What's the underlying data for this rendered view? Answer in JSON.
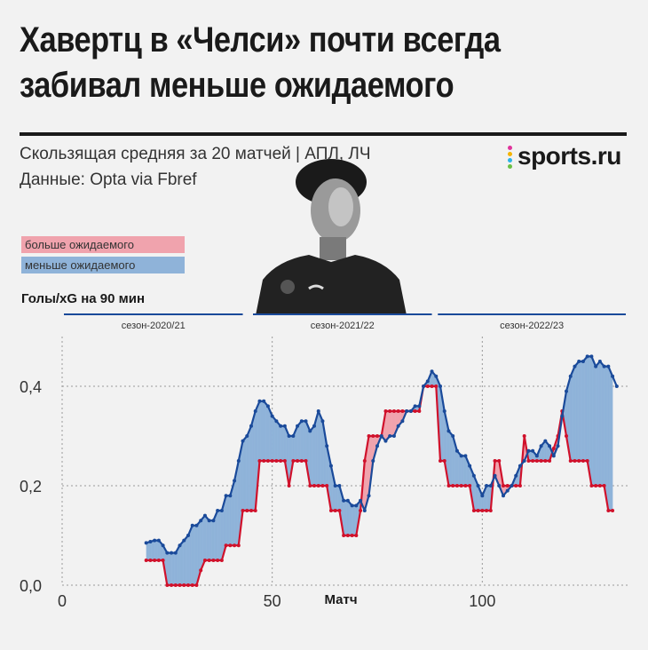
{
  "header": {
    "title_line1": "Хавертц в «Челси» почти всегда",
    "title_line2": "забивал меньше ожидаемого",
    "subtitle_line1": "Скользящая средняя за 20 матчей | АПЛ, ЛЧ",
    "subtitle_line2": "Данные: Opta via Fbref"
  },
  "logo": {
    "text": "sports.ru",
    "dot_colors": [
      "#e0339b",
      "#f5b400",
      "#2bb3e8",
      "#6ac045"
    ]
  },
  "legend": {
    "more_label": "больше ожидаемого",
    "less_label": "меньше ожидаемого",
    "more_color": "#f0a3ad",
    "less_color": "#8fb3d9"
  },
  "colors": {
    "goals_line": "#d0112b",
    "xg_line": "#1a4a9a",
    "more_fill": "#f0a3ad",
    "less_fill": "#8fb3d9"
  },
  "chart_data": {
    "type": "line",
    "title": "Хавертц в «Челси» почти всегда забивал меньше ожидаемого",
    "ylabel": "Голы/xG на 90 мин",
    "xlabel": "Матч",
    "xlim": [
      0,
      135
    ],
    "ylim": [
      0,
      0.5
    ],
    "xticks": [
      0,
      50,
      100
    ],
    "xtick_labels": [
      "0",
      "50",
      "100"
    ],
    "yticks": [
      0,
      0.2,
      0.4
    ],
    "ytick_labels": [
      "0,0",
      "0,2",
      "0,4"
    ],
    "grid": true,
    "seasons": [
      {
        "label": "сезон-2020/21",
        "start": 0,
        "end": 43
      },
      {
        "label": "сезон-2021/22",
        "start": 45,
        "end": 88
      },
      {
        "label": "сезон-2022/23",
        "start": 89,
        "end": 135
      }
    ],
    "series": [
      {
        "name": "Голы",
        "color": "#d0112b",
        "points": [
          [
            20,
            0.05
          ],
          [
            24,
            0.05
          ],
          [
            25,
            0
          ],
          [
            32,
            0
          ],
          [
            33,
            0.03
          ],
          [
            34,
            0.05
          ],
          [
            38,
            0.05
          ],
          [
            39,
            0.08
          ],
          [
            42,
            0.08
          ],
          [
            43,
            0.15
          ],
          [
            46,
            0.15
          ],
          [
            47,
            0.25
          ],
          [
            52,
            0.25
          ],
          [
            53,
            0.25
          ],
          [
            54,
            0.2
          ],
          [
            55,
            0.25
          ],
          [
            58,
            0.25
          ],
          [
            59,
            0.2
          ],
          [
            63,
            0.2
          ],
          [
            64,
            0.15
          ],
          [
            66,
            0.15
          ],
          [
            67,
            0.1
          ],
          [
            70,
            0.1
          ],
          [
            71,
            0.15
          ],
          [
            72,
            0.25
          ],
          [
            73,
            0.3
          ],
          [
            76,
            0.3
          ],
          [
            77,
            0.35
          ],
          [
            85,
            0.35
          ],
          [
            86,
            0.4
          ],
          [
            89,
            0.4
          ],
          [
            90,
            0.25
          ],
          [
            91,
            0.25
          ],
          [
            92,
            0.2
          ],
          [
            97,
            0.2
          ],
          [
            98,
            0.15
          ],
          [
            102,
            0.15
          ],
          [
            103,
            0.25
          ],
          [
            104,
            0.25
          ],
          [
            105,
            0.2
          ],
          [
            109,
            0.2
          ],
          [
            110,
            0.3
          ],
          [
            111,
            0.25
          ],
          [
            116,
            0.25
          ],
          [
            118,
            0.3
          ],
          [
            119,
            0.35
          ],
          [
            120,
            0.3
          ],
          [
            121,
            0.25
          ],
          [
            125,
            0.25
          ],
          [
            126,
            0.2
          ],
          [
            129,
            0.2
          ],
          [
            130,
            0.15
          ],
          [
            131,
            0.15
          ]
        ]
      },
      {
        "name": "xG",
        "color": "#1a4a9a",
        "points": [
          [
            20,
            0.085
          ],
          [
            22,
            0.09
          ],
          [
            23,
            0.09
          ],
          [
            24,
            0.08
          ],
          [
            25,
            0.065
          ],
          [
            27,
            0.065
          ],
          [
            28,
            0.08
          ],
          [
            29,
            0.09
          ],
          [
            30,
            0.1
          ],
          [
            31,
            0.12
          ],
          [
            32,
            0.12
          ],
          [
            33,
            0.13
          ],
          [
            34,
            0.14
          ],
          [
            35,
            0.13
          ],
          [
            36,
            0.13
          ],
          [
            37,
            0.15
          ],
          [
            38,
            0.15
          ],
          [
            39,
            0.18
          ],
          [
            40,
            0.18
          ],
          [
            41,
            0.21
          ],
          [
            42,
            0.25
          ],
          [
            43,
            0.29
          ],
          [
            44,
            0.3
          ],
          [
            45,
            0.32
          ],
          [
            46,
            0.35
          ],
          [
            47,
            0.37
          ],
          [
            48,
            0.37
          ],
          [
            49,
            0.36
          ],
          [
            50,
            0.34
          ],
          [
            51,
            0.33
          ],
          [
            52,
            0.32
          ],
          [
            53,
            0.32
          ],
          [
            54,
            0.3
          ],
          [
            55,
            0.3
          ],
          [
            56,
            0.32
          ],
          [
            57,
            0.33
          ],
          [
            58,
            0.33
          ],
          [
            59,
            0.31
          ],
          [
            60,
            0.32
          ],
          [
            61,
            0.35
          ],
          [
            62,
            0.33
          ],
          [
            63,
            0.28
          ],
          [
            64,
            0.24
          ],
          [
            65,
            0.2
          ],
          [
            66,
            0.2
          ],
          [
            67,
            0.17
          ],
          [
            68,
            0.17
          ],
          [
            69,
            0.16
          ],
          [
            70,
            0.16
          ],
          [
            71,
            0.17
          ],
          [
            72,
            0.15
          ],
          [
            73,
            0.18
          ],
          [
            74,
            0.25
          ],
          [
            75,
            0.28
          ],
          [
            76,
            0.3
          ],
          [
            77,
            0.29
          ],
          [
            78,
            0.3
          ],
          [
            79,
            0.3
          ],
          [
            80,
            0.32
          ],
          [
            81,
            0.33
          ],
          [
            82,
            0.35
          ],
          [
            83,
            0.35
          ],
          [
            84,
            0.36
          ],
          [
            85,
            0.36
          ],
          [
            86,
            0.4
          ],
          [
            87,
            0.41
          ],
          [
            88,
            0.43
          ],
          [
            89,
            0.42
          ],
          [
            90,
            0.4
          ],
          [
            91,
            0.35
          ],
          [
            92,
            0.31
          ],
          [
            93,
            0.3
          ],
          [
            94,
            0.27
          ],
          [
            95,
            0.26
          ],
          [
            96,
            0.26
          ],
          [
            97,
            0.24
          ],
          [
            98,
            0.22
          ],
          [
            99,
            0.2
          ],
          [
            100,
            0.18
          ],
          [
            101,
            0.2
          ],
          [
            102,
            0.2
          ],
          [
            103,
            0.22
          ],
          [
            104,
            0.2
          ],
          [
            105,
            0.18
          ],
          [
            106,
            0.19
          ],
          [
            107,
            0.2
          ],
          [
            108,
            0.22
          ],
          [
            109,
            0.24
          ],
          [
            110,
            0.25
          ],
          [
            111,
            0.27
          ],
          [
            112,
            0.27
          ],
          [
            113,
            0.26
          ],
          [
            114,
            0.28
          ],
          [
            115,
            0.29
          ],
          [
            116,
            0.28
          ],
          [
            117,
            0.26
          ],
          [
            118,
            0.28
          ],
          [
            119,
            0.34
          ],
          [
            120,
            0.39
          ],
          [
            121,
            0.42
          ],
          [
            122,
            0.44
          ],
          [
            123,
            0.45
          ],
          [
            124,
            0.45
          ],
          [
            125,
            0.46
          ],
          [
            126,
            0.46
          ],
          [
            127,
            0.44
          ],
          [
            128,
            0.45
          ],
          [
            129,
            0.44
          ],
          [
            130,
            0.44
          ],
          [
            131,
            0.42
          ],
          [
            132,
            0.4
          ]
        ]
      }
    ]
  }
}
